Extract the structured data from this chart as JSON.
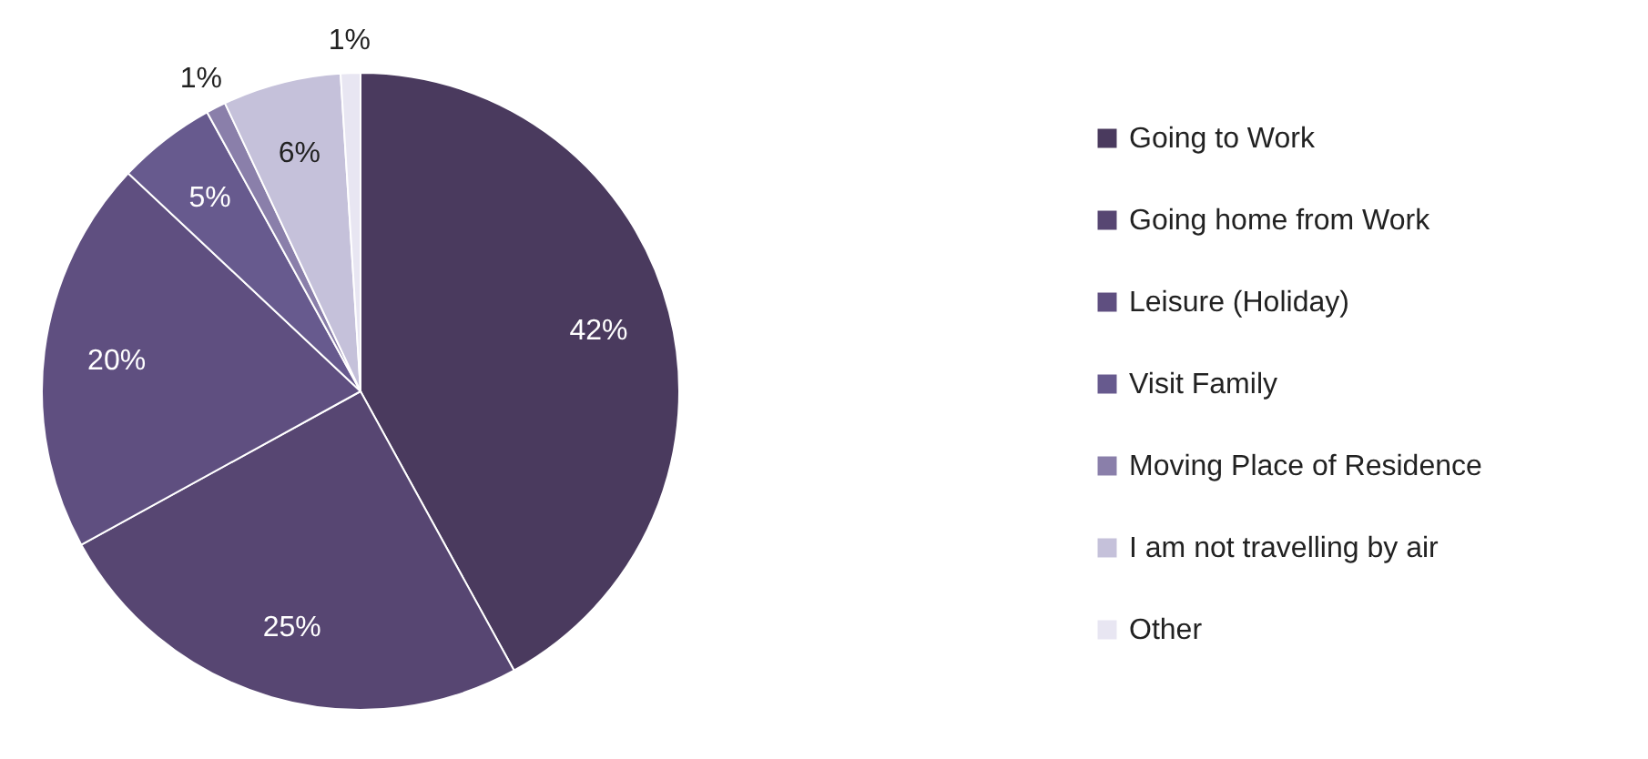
{
  "chart_data": {
    "type": "pie",
    "categories": [
      "Going to Work",
      "Going home from Work",
      "Leisure (Holiday)",
      "Visit Family",
      "Moving Place of Residence",
      "I am not travelling by air",
      "Other"
    ],
    "values": [
      42,
      25,
      20,
      5,
      1,
      6,
      1
    ],
    "colors": [
      "#4a3a5e",
      "#574672",
      "#5f4f80",
      "#675a8e",
      "#8a7faa",
      "#c5c1da",
      "#e8e6f2"
    ],
    "value_labels": [
      "42%",
      "25%",
      "20%",
      "5%",
      "1%",
      "6%",
      "1%"
    ],
    "legend": "right"
  }
}
